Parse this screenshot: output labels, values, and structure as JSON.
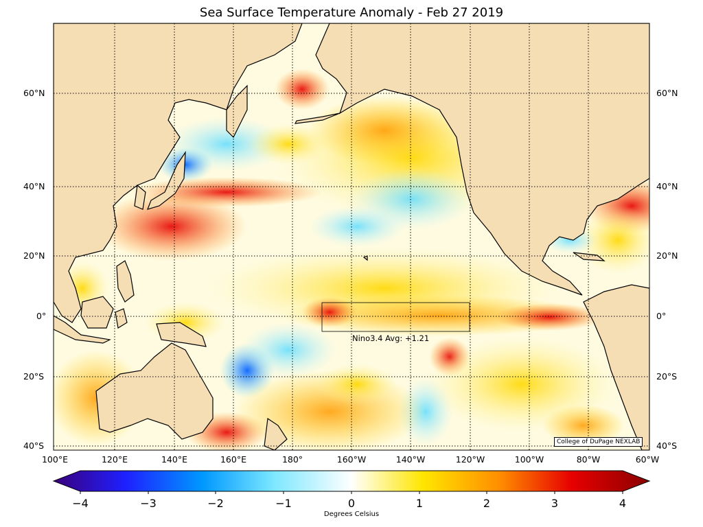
{
  "title": "Sea Surface Temperature Anomaly - Feb 27 2019",
  "map": {
    "region": "Pacific Ocean",
    "projection": "equirectangular",
    "lon_range_deg": [
      100,
      300
    ],
    "lat_range_deg": [
      -42,
      76
    ],
    "land_color": "#f5deb3",
    "lat_labels": [
      "60°N",
      "40°N",
      "20°N",
      "0°",
      "20°S",
      "40°S"
    ],
    "lon_labels": [
      "100°E",
      "120°E",
      "140°E",
      "160°E",
      "180°",
      "160°W",
      "140°W",
      "120°W",
      "100°W",
      "80°W",
      "60°W"
    ],
    "nino_box_label": "Nino3.4 Avg: +1.21",
    "credit": "College of DuPage NEXLAB"
  },
  "colorbar": {
    "label": "Degrees Celsius",
    "ticks": [
      "−4",
      "−3",
      "−2",
      "−1",
      "0",
      "1",
      "2",
      "3",
      "4"
    ],
    "range": [
      -4,
      4
    ],
    "colors": [
      "#3a007a",
      "#1f1fff",
      "#0098ff",
      "#7de8ff",
      "#ffffff",
      "#ffe600",
      "#ff8c00",
      "#e60000",
      "#8b0000"
    ]
  }
}
